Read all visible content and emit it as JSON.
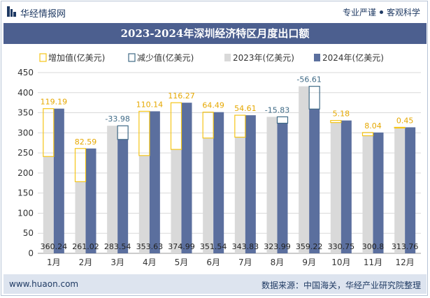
{
  "header": {
    "brand": "华经情报网",
    "tag_left": "专业严谨",
    "tag_right": "客观科学"
  },
  "footer": {
    "url": "www.huaon.com",
    "source": "数据来源：中国海关，华经产业研究院整理"
  },
  "colors": {
    "title_bg": "#4c5f8f",
    "bar_2023": "#d9d9d9",
    "bar_2024": "#5b6f9e",
    "increase": "#f5c518",
    "decrease": "#3f6a86"
  },
  "chart_data": {
    "type": "bar",
    "title": "2023-2024年深圳经济特区月度出口额",
    "categories": [
      "1月",
      "2月",
      "3月",
      "4月",
      "5月",
      "6月",
      "7月",
      "8月",
      "9月",
      "10月",
      "11月",
      "12月"
    ],
    "series": [
      {
        "name": "2023年(亿美元)",
        "values": [
          241.05,
          178.43,
          317.52,
          243.49,
          258.72,
          287.05,
          289.22,
          339.82,
          415.83,
          325.57,
          292.76,
          313.31
        ]
      },
      {
        "name": "2024年(亿美元)",
        "values": [
          360.24,
          261.02,
          283.54,
          353.63,
          374.99,
          351.54,
          343.83,
          323.99,
          359.22,
          330.75,
          300.8,
          313.76
        ]
      }
    ],
    "changes": [
      119.19,
      82.59,
      -33.98,
      110.14,
      116.27,
      64.49,
      54.61,
      -15.83,
      -56.61,
      5.18,
      8.04,
      0.45
    ],
    "change_labels": [
      "119.19",
      "82.59",
      "-33.98",
      "110.14",
      "116.27",
      "64.49",
      "54.61",
      "-15.83",
      "-56.61",
      "5.18",
      "8.04",
      "0.45"
    ],
    "value_labels_2024": [
      "360.24",
      "261.02",
      "283.54",
      "353.63",
      "374.99",
      "351.54",
      "343.83",
      "323.99",
      "359.22",
      "330.75",
      "300.8",
      "313.76"
    ],
    "legend": [
      "增加值(亿美元)",
      "减少值(亿美元)",
      "2023年(亿美元)",
      "2024年(亿美元)"
    ],
    "yticks": [
      "0",
      "50",
      "100",
      "150",
      "200",
      "250",
      "300",
      "350",
      "400",
      "450"
    ],
    "ylim": [
      0,
      450
    ],
    "xlabel": "",
    "ylabel": ""
  }
}
